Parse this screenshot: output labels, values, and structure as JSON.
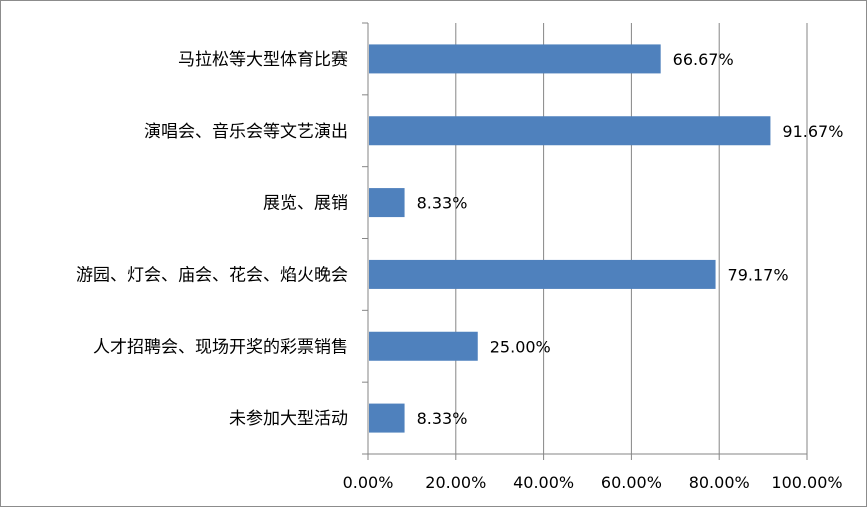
{
  "chart_data": {
    "type": "bar",
    "orientation": "horizontal",
    "categories": [
      "马拉松等大型体育比赛",
      "演唱会、音乐会等文艺演出",
      "展览、展销",
      "游园、灯会、庙会、花会、焰火晚会",
      "人才招聘会、现场开奖的彩票销售",
      "未参加大型活动"
    ],
    "values": [
      66.67,
      91.67,
      8.33,
      79.17,
      25.0,
      8.33
    ],
    "value_labels": [
      "66.67%",
      "91.67%",
      "8.33%",
      "79.17%",
      "25.00%",
      "8.33%"
    ],
    "xlim": [
      0,
      100
    ],
    "x_ticks": [
      "0.00%",
      "20.00%",
      "40.00%",
      "60.00%",
      "80.00%",
      "100.00%"
    ],
    "title": "",
    "xlabel": "",
    "ylabel": "",
    "grid": "vertical",
    "legend": "none",
    "bar_color": "#4f81bd",
    "grid_color": "#868686"
  }
}
